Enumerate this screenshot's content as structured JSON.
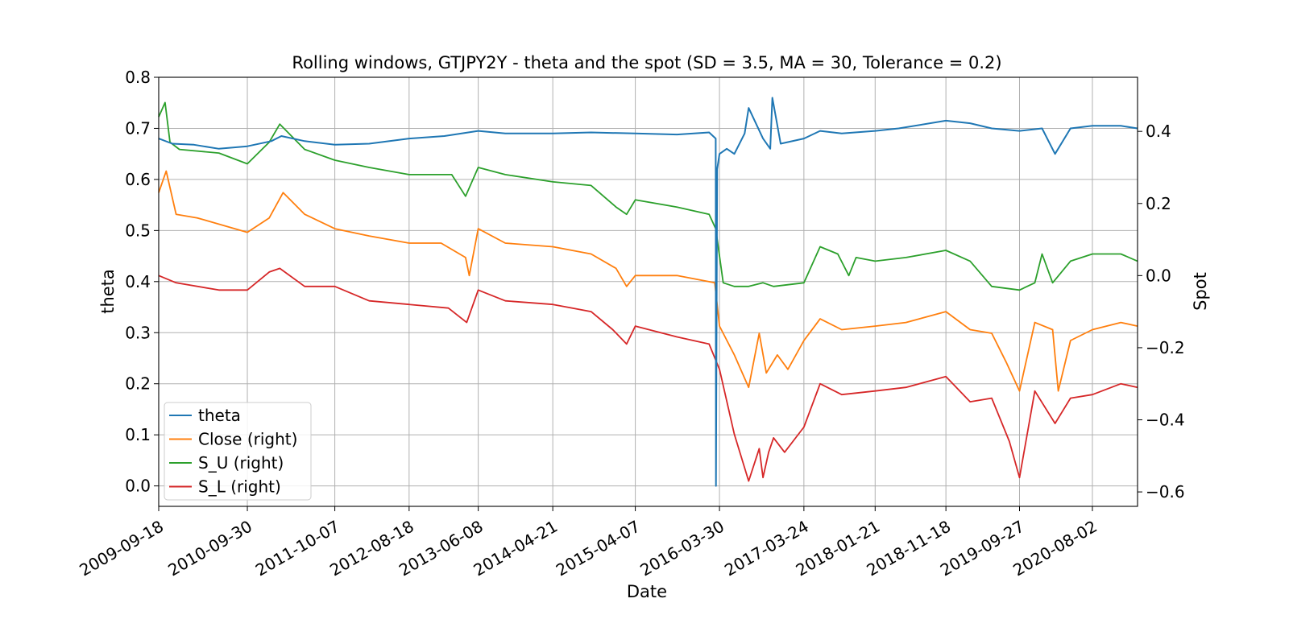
{
  "chart_data": {
    "type": "line",
    "title": "Rolling windows, GTJPY2Y - theta and the spot (SD = 3.5, MA = 30, Tolerance  = 0.2)",
    "xlabel": "Date",
    "ylabel": "theta",
    "ylabel_right": "Spot",
    "x_ticks": [
      "2009-09-18",
      "2010-09-30",
      "2011-10-07",
      "2012-08-18",
      "2013-06-08",
      "2014-04-21",
      "2015-04-07",
      "2016-03-30",
      "2017-03-24",
      "2018-01-21",
      "2018-11-18",
      "2019-09-27",
      "2020-08-02"
    ],
    "x_range": [
      "2009-09-18",
      "2021-02-10"
    ],
    "ylim": [
      -0.04,
      0.8
    ],
    "ylim_right": [
      -0.64,
      0.55
    ],
    "y_ticks": [
      0.0,
      0.1,
      0.2,
      0.3,
      0.4,
      0.5,
      0.6,
      0.7,
      0.8
    ],
    "y_ticks_right": [
      -0.6,
      -0.4,
      -0.2,
      0.0,
      0.2,
      0.4
    ],
    "grid": true,
    "legend_position": "bottom-left",
    "series": [
      {
        "name": "theta",
        "axis": "left",
        "color": "#1f77b4",
        "x": [
          "2009-09-18",
          "2009-11-15",
          "2010-02-15",
          "2010-06-01",
          "2010-09-30",
          "2011-01-10",
          "2011-02-22",
          "2011-06-01",
          "2011-10-07",
          "2012-03-01",
          "2012-08-18",
          "2013-01-15",
          "2013-06-08",
          "2013-10-01",
          "2014-04-21",
          "2014-10-01",
          "2015-04-07",
          "2015-10-01",
          "2016-02-15",
          "2016-03-14",
          "2016-03-15",
          "2016-03-20",
          "2016-03-30",
          "2016-04-30",
          "2016-06-01",
          "2016-07-15",
          "2016-08-01",
          "2016-10-01",
          "2016-11-01",
          "2016-11-10",
          "2016-12-15",
          "2017-03-24",
          "2017-06-01",
          "2017-09-01",
          "2018-01-21",
          "2018-05-01",
          "2018-11-18",
          "2019-03-01",
          "2019-06-01",
          "2019-09-27",
          "2020-01-01",
          "2020-02-25",
          "2020-05-01",
          "2020-08-02",
          "2020-12-01",
          "2021-02-10"
        ],
        "values": [
          0.68,
          0.67,
          0.668,
          0.66,
          0.665,
          0.675,
          0.685,
          0.675,
          0.668,
          0.67,
          0.68,
          0.685,
          0.695,
          0.69,
          0.69,
          0.692,
          0.69,
          0.688,
          0.692,
          0.68,
          0.0,
          0.62,
          0.65,
          0.66,
          0.65,
          0.69,
          0.74,
          0.68,
          0.66,
          0.76,
          0.67,
          0.68,
          0.695,
          0.69,
          0.695,
          0.7,
          0.715,
          0.71,
          0.7,
          0.695,
          0.7,
          0.65,
          0.7,
          0.705,
          0.705,
          0.7
        ]
      },
      {
        "name": "Close (right)",
        "axis": "right",
        "color": "#ff7f0e",
        "x": [
          "2009-09-18",
          "2009-10-20",
          "2009-12-01",
          "2010-03-01",
          "2010-09-30",
          "2011-01-01",
          "2011-03-01",
          "2011-06-01",
          "2011-10-07",
          "2012-03-01",
          "2012-08-18",
          "2013-01-01",
          "2013-04-15",
          "2013-05-01",
          "2013-06-08",
          "2013-10-01",
          "2014-04-21",
          "2014-10-01",
          "2015-01-15",
          "2015-03-01",
          "2015-04-07",
          "2015-10-01",
          "2016-03-10",
          "2016-03-30",
          "2016-06-01",
          "2016-08-01",
          "2016-09-15",
          "2016-10-15",
          "2016-12-01",
          "2017-01-15",
          "2017-03-24",
          "2017-06-01",
          "2017-09-01",
          "2018-01-21",
          "2018-06-01",
          "2018-11-18",
          "2019-03-01",
          "2019-06-01",
          "2019-08-01",
          "2019-09-27",
          "2019-12-01",
          "2020-02-15",
          "2020-03-10",
          "2020-05-01",
          "2020-08-02",
          "2020-12-01",
          "2021-02-10"
        ],
        "values": [
          0.23,
          0.29,
          0.17,
          0.16,
          0.12,
          0.16,
          0.23,
          0.17,
          0.13,
          0.11,
          0.09,
          0.09,
          0.05,
          0.0,
          0.13,
          0.09,
          0.08,
          0.06,
          0.02,
          -0.03,
          -0.0,
          -0.0,
          -0.02,
          -0.14,
          -0.22,
          -0.31,
          -0.16,
          -0.27,
          -0.22,
          -0.26,
          -0.18,
          -0.12,
          -0.15,
          -0.14,
          -0.13,
          -0.1,
          -0.15,
          -0.16,
          -0.24,
          -0.32,
          -0.13,
          -0.15,
          -0.32,
          -0.18,
          -0.15,
          -0.13,
          -0.14
        ]
      },
      {
        "name": "S_U (right)",
        "axis": "right",
        "color": "#2ca02c",
        "x": [
          "2009-09-18",
          "2009-10-15",
          "2009-11-05",
          "2009-12-15",
          "2010-06-01",
          "2010-09-30",
          "2011-01-01",
          "2011-02-15",
          "2011-06-01",
          "2011-10-07",
          "2012-03-01",
          "2012-08-18",
          "2013-02-15",
          "2013-04-15",
          "2013-06-08",
          "2013-10-01",
          "2014-04-21",
          "2014-10-01",
          "2015-01-15",
          "2015-03-01",
          "2015-04-07",
          "2015-10-01",
          "2016-02-15",
          "2016-03-14",
          "2016-04-15",
          "2016-06-01",
          "2016-08-01",
          "2016-10-01",
          "2016-11-15",
          "2017-03-24",
          "2017-06-01",
          "2017-08-15",
          "2017-10-01",
          "2017-11-01",
          "2018-01-21",
          "2018-06-01",
          "2018-11-18",
          "2019-03-01",
          "2019-06-01",
          "2019-09-27",
          "2019-12-01",
          "2020-01-01",
          "2020-02-15",
          "2020-05-01",
          "2020-08-02",
          "2020-12-01",
          "2021-02-10"
        ],
        "values": [
          0.44,
          0.48,
          0.37,
          0.35,
          0.34,
          0.31,
          0.37,
          0.42,
          0.35,
          0.32,
          0.3,
          0.28,
          0.28,
          0.22,
          0.3,
          0.28,
          0.26,
          0.25,
          0.19,
          0.17,
          0.21,
          0.19,
          0.17,
          0.13,
          -0.02,
          -0.03,
          -0.03,
          -0.02,
          -0.03,
          -0.02,
          0.08,
          0.06,
          0.0,
          0.05,
          0.04,
          0.05,
          0.07,
          0.04,
          -0.03,
          -0.04,
          -0.02,
          0.06,
          -0.02,
          0.04,
          0.06,
          0.06,
          0.04
        ]
      },
      {
        "name": "S_L (right)",
        "axis": "right",
        "color": "#d62728",
        "x": [
          "2009-09-18",
          "2009-12-01",
          "2010-06-01",
          "2010-09-30",
          "2011-01-01",
          "2011-02-15",
          "2011-06-01",
          "2011-10-07",
          "2012-03-01",
          "2012-08-18",
          "2013-02-01",
          "2013-04-20",
          "2013-06-08",
          "2013-10-01",
          "2014-04-21",
          "2014-10-01",
          "2015-01-01",
          "2015-03-01",
          "2015-04-07",
          "2015-10-01",
          "2016-02-15",
          "2016-03-30",
          "2016-06-01",
          "2016-08-01",
          "2016-09-15",
          "2016-10-01",
          "2016-10-25",
          "2016-11-15",
          "2017-01-01",
          "2017-03-24",
          "2017-06-01",
          "2017-09-01",
          "2018-01-21",
          "2018-06-01",
          "2018-11-18",
          "2019-03-01",
          "2019-06-01",
          "2019-08-15",
          "2019-09-27",
          "2019-12-01",
          "2020-02-25",
          "2020-05-01",
          "2020-08-02",
          "2020-12-01",
          "2021-02-10"
        ],
        "values": [
          0.0,
          -0.02,
          -0.04,
          -0.04,
          0.01,
          0.02,
          -0.03,
          -0.03,
          -0.07,
          -0.08,
          -0.09,
          -0.13,
          -0.04,
          -0.07,
          -0.08,
          -0.1,
          -0.15,
          -0.19,
          -0.14,
          -0.17,
          -0.19,
          -0.26,
          -0.44,
          -0.57,
          -0.48,
          -0.56,
          -0.49,
          -0.45,
          -0.49,
          -0.42,
          -0.3,
          -0.33,
          -0.32,
          -0.31,
          -0.28,
          -0.35,
          -0.34,
          -0.46,
          -0.56,
          -0.32,
          -0.41,
          -0.34,
          -0.33,
          -0.3,
          -0.31
        ]
      }
    ]
  }
}
